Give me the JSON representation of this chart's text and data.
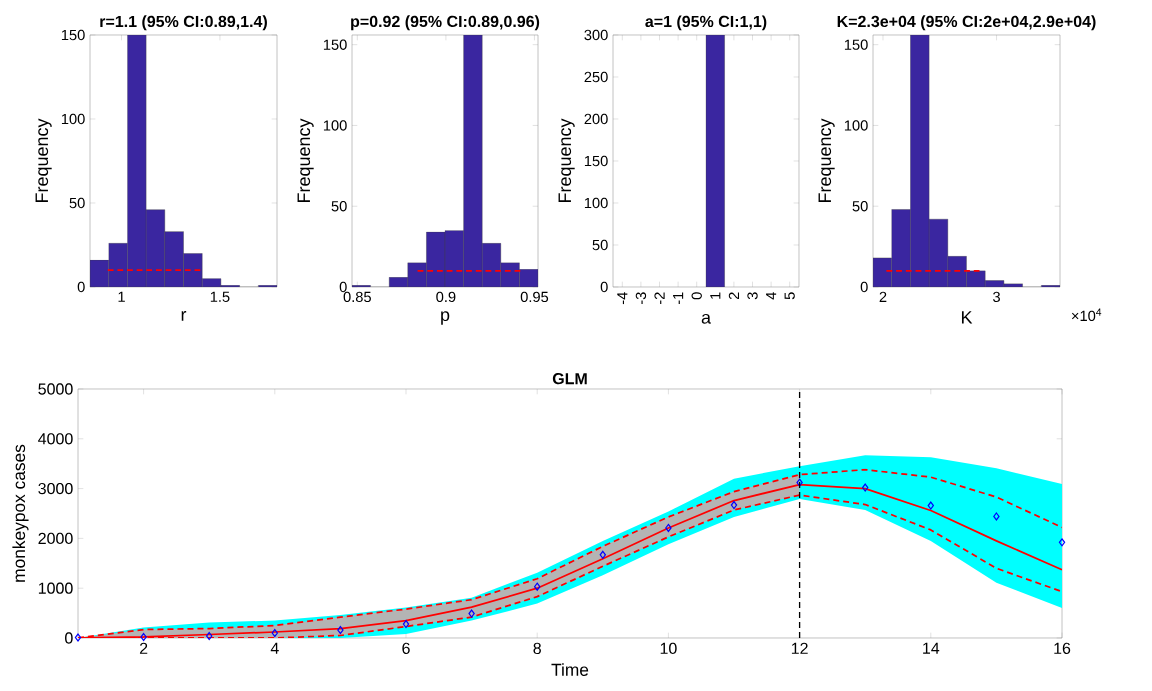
{
  "chart_data": [
    {
      "type": "histogram",
      "title": "r=1.1 (95% CI:0.89,1.4)",
      "xlabel": "r",
      "ylabel": "Frequency",
      "bins": [
        0.84,
        0.935,
        1.03,
        1.125,
        1.22,
        1.315,
        1.41,
        1.505,
        1.6,
        1.695,
        1.79
      ],
      "values": [
        16,
        26,
        150,
        46,
        33,
        20,
        5,
        1,
        0,
        1
      ],
      "color": "#3a26a0",
      "xlim": [
        0.84,
        1.79
      ],
      "ylim": [
        0,
        150
      ],
      "xticks": [
        1,
        1.5
      ],
      "yticks": [
        0,
        50,
        100,
        150
      ],
      "series": [
        {
          "type": "line",
          "x": [
            0.93,
            1.4
          ],
          "values": [
            10,
            10
          ],
          "color": "#ff0000",
          "line_style": "dashed"
        }
      ]
    },
    {
      "type": "histogram",
      "title": "p=0.92 (95% CI:0.89,0.96)",
      "xlabel": "p",
      "ylabel": "Frequency",
      "bins": [
        0.847,
        0.8575,
        0.868,
        0.8785,
        0.889,
        0.8995,
        0.91,
        0.9205,
        0.931,
        0.9415,
        0.952
      ],
      "values": [
        1,
        0,
        6,
        15,
        34,
        35,
        156,
        27,
        15,
        11
      ],
      "color": "#3a26a0",
      "xlim": [
        0.847,
        0.952
      ],
      "ylim": [
        0,
        156
      ],
      "xticks": [
        0.85,
        0.9,
        0.95
      ],
      "yticks": [
        0,
        50,
        100,
        150
      ],
      "series": [
        {
          "type": "line",
          "x": [
            0.884,
            0.942
          ],
          "values": [
            10,
            10
          ],
          "color": "#ff0000",
          "line_style": "dashed"
        }
      ]
    },
    {
      "type": "histogram",
      "title": "a=1 (95% CI:1,1)",
      "xlabel": "a",
      "ylabel": "Frequency",
      "bins": [
        0.5,
        1.5
      ],
      "values": [
        300
      ],
      "color": "#3a26a0",
      "xlim": [
        -4.5,
        5.5
      ],
      "ylim": [
        0,
        300
      ],
      "xticks": [
        -4,
        -3,
        -2,
        -1,
        0,
        1,
        2,
        3,
        4,
        5
      ],
      "yticks": [
        0,
        50,
        100,
        150,
        200,
        250,
        300
      ]
    },
    {
      "type": "histogram",
      "title": "K=2.3e+04 (95% CI:2e+04,2.9e+04)",
      "xlabel": "K",
      "ylabel": "Frequency",
      "bins": [
        1.912,
        2.076,
        2.241,
        2.406,
        2.571,
        2.735,
        2.9,
        3.065,
        3.229,
        3.394,
        3.559
      ],
      "values": [
        18,
        48,
        156,
        42,
        19,
        10,
        4,
        2,
        0,
        1
      ],
      "color": "#3a26a0",
      "xlim": [
        1.912,
        3.559
      ],
      "ylim": [
        0,
        156
      ],
      "xticks": [
        2,
        3
      ],
      "yticks": [
        0,
        50,
        100,
        150
      ],
      "annotations": [
        "×10$^{4}$"
      ],
      "series": [
        {
          "type": "line",
          "x": [
            2.03,
            2.85
          ],
          "values": [
            10,
            10
          ],
          "color": "#ff0000",
          "line_style": "dashed"
        }
      ]
    },
    {
      "type": "line",
      "title": "GLM",
      "xlabel": "Time",
      "ylabel": "monkeypox cases",
      "x": [
        1,
        2,
        3,
        4,
        5,
        6,
        7,
        8,
        9,
        10,
        11,
        12,
        13,
        14,
        15,
        16
      ],
      "xlim": [
        1,
        16
      ],
      "ylim": [
        0,
        5000
      ],
      "xticks": [
        2,
        4,
        6,
        8,
        10,
        12,
        14,
        16
      ],
      "yticks": [
        0,
        1000,
        2000,
        3000,
        4000,
        5000
      ],
      "series": [
        {
          "type": "line",
          "color": "#00ffff",
          "values": [
            null,
            null,
            null,
            null,
            null,
            null,
            null,
            null,
            null,
            null,
            null,
            null,
            null,
            null,
            null,
            null
          ],
          "upper": [
            0,
            210,
            310,
            350,
            460,
            610,
            810,
            1310,
            1950,
            2540,
            3200,
            3450,
            3670,
            3630,
            3410,
            3090
          ],
          "lower": [
            0,
            0,
            0,
            0,
            0,
            80,
            350,
            690,
            1260,
            1880,
            2430,
            2790,
            2570,
            1950,
            1110,
            600
          ]
        },
        {
          "type": "line",
          "color": "#b4b4b4",
          "values": [
            null,
            null,
            null,
            null,
            null,
            null,
            null,
            null,
            null,
            null,
            null,
            null,
            null,
            null,
            null,
            null
          ],
          "upper": [
            0,
            170,
            190,
            250,
            420,
            580,
            770,
            1190,
            1840,
            2430,
            2940,
            3280,
            null,
            null,
            null,
            null
          ],
          "lower": [
            0,
            0,
            0,
            0,
            50,
            230,
            420,
            830,
            1440,
            2030,
            2570,
            2870,
            null,
            null,
            null,
            null
          ]
        },
        {
          "type": "line",
          "color": "#ff0000",
          "line_style": "solid",
          "values": [
            0,
            20,
            70,
            120,
            190,
            350,
            620,
            1000,
            1590,
            2210,
            2760,
            3080,
            3000,
            2560,
            1950,
            1370
          ]
        },
        {
          "type": "line",
          "color": "#ff0000",
          "line_style": "dashed",
          "values": [
            0,
            170,
            190,
            250,
            420,
            580,
            770,
            1190,
            1840,
            2430,
            2940,
            3280,
            3380,
            3230,
            2830,
            2220
          ]
        },
        {
          "type": "line",
          "color": "#ff0000",
          "line_style": "dashed",
          "values": [
            0,
            0,
            0,
            0,
            50,
            230,
            420,
            830,
            1440,
            2030,
            2570,
            2870,
            2680,
            2170,
            1400,
            930
          ]
        },
        {
          "type": "scatter",
          "color": "#0000ff",
          "marker": "diamond",
          "values": [
            10,
            20,
            40,
            100,
            160,
            280,
            490,
            1030,
            1670,
            2210,
            2670,
            3120,
            3020,
            2660,
            2440,
            1920
          ]
        }
      ],
      "ref_lines": [
        {
          "axis": "x",
          "value": 12,
          "color": "#000000",
          "line_style": "dashed"
        }
      ]
    }
  ]
}
